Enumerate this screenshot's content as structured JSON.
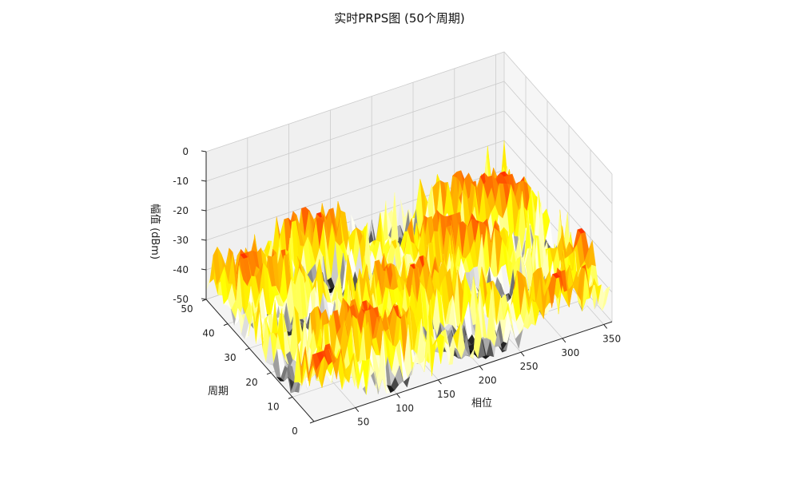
{
  "chart_data": {
    "type": "surface3d",
    "title": "实时PRPS图 (50个周期)",
    "xlabel": "相位",
    "ylabel": "周期",
    "zlabel": "幅值 (dBm)",
    "xlim": [
      0,
      360
    ],
    "ylim": [
      0,
      50
    ],
    "zlim": [
      -50,
      0
    ],
    "x_ticks": [
      "50",
      "100",
      "150",
      "200",
      "250",
      "300",
      "350"
    ],
    "y_ticks": [
      "0",
      "10",
      "20",
      "30",
      "40",
      "50"
    ],
    "z_ticks": [
      "0",
      "-10",
      "-20",
      "-30",
      "-40",
      "-50"
    ],
    "grid": true,
    "colormap": [
      "#000000",
      "#ffffff",
      "#ffff00",
      "#ffaa00",
      "#ff3300"
    ],
    "surface": {
      "phase_range": [
        0,
        360
      ],
      "cycle_range": [
        1,
        50
      ],
      "amplitude_range": [
        -50,
        -30
      ],
      "description": "noisy amplitude surface near the -50 dBm floor with scattered peaks up to about -30 dBm"
    }
  }
}
